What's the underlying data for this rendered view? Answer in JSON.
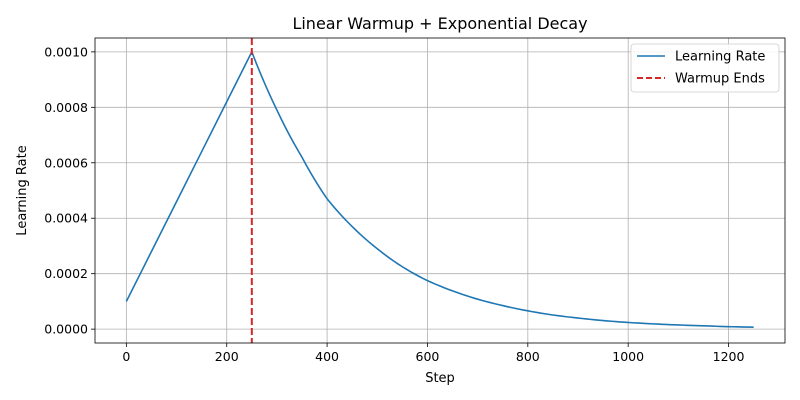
{
  "chart_data": {
    "type": "line",
    "title": "Linear Warmup + Exponential Decay",
    "xlabel": "Step",
    "ylabel": "Learning Rate",
    "xlim": [
      -62.5,
      1312.5
    ],
    "ylim": [
      -5e-05,
      0.00105
    ],
    "xticks": [
      0,
      200,
      400,
      600,
      800,
      1000,
      1200
    ],
    "xtick_labels": [
      "0",
      "200",
      "400",
      "600",
      "800",
      "1000",
      "1200"
    ],
    "yticks": [
      0.0,
      0.0002,
      0.0004,
      0.0006,
      0.0008,
      0.001
    ],
    "ytick_labels": [
      "0.0000",
      "0.0002",
      "0.0004",
      "0.0006",
      "0.0008",
      "0.0010"
    ],
    "grid": true,
    "legend_position": "top-right",
    "series": [
      {
        "name": "Learning Rate",
        "color": "#1f77b4",
        "style": "solid",
        "x": [
          0,
          50,
          100,
          150,
          200,
          250,
          300,
          350,
          400,
          450,
          500,
          550,
          600,
          650,
          700,
          750,
          800,
          850,
          900,
          950,
          1000,
          1050,
          1100,
          1150,
          1200,
          1250
        ],
        "y": [
          0.0001,
          0.00028,
          0.00046,
          0.00064,
          0.00082,
          0.001,
          0.00079,
          0.00062,
          0.00047,
          0.00037,
          0.00029,
          0.000225,
          0.000175,
          0.000138,
          0.000108,
          8.5e-05,
          6.6e-05,
          5.1e-05,
          4e-05,
          3.1e-05,
          2.4e-05,
          1.9e-05,
          1.5e-05,
          1.2e-05,
          9e-06,
          7e-06
        ]
      },
      {
        "name": "Warmup Ends",
        "color": "#d62728",
        "style": "dashed",
        "type": "vline",
        "x": 250
      }
    ]
  }
}
